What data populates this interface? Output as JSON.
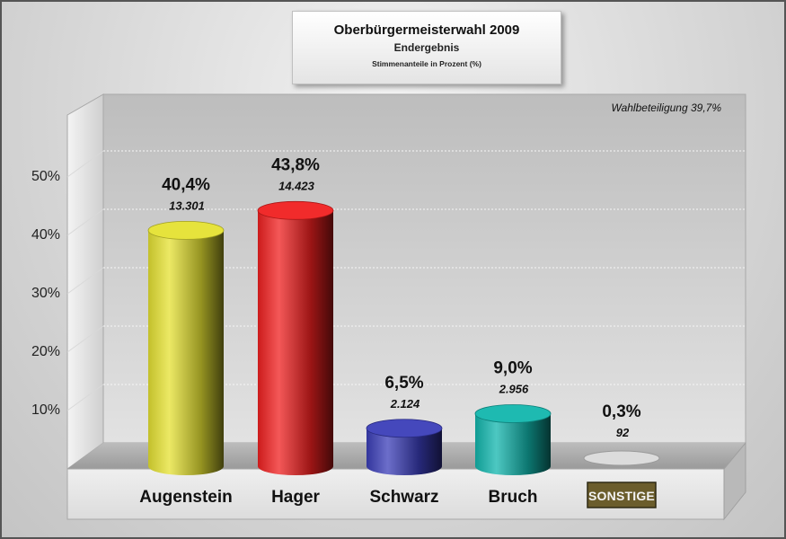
{
  "header": {
    "title": "Oberbürgermeisterwahl 2009",
    "subtitle": "Endergebnis",
    "unit_note": "Stimmenanteile in Prozent (%)"
  },
  "chart_data": {
    "type": "bar",
    "title": "Oberbürgermeisterwahl 2009",
    "subtitle": "Endergebnis",
    "ylabel": "Stimmenanteile in Prozent (%)",
    "ylim": [
      0,
      60
    ],
    "yticks": [
      "10%",
      "20%",
      "30%",
      "40%",
      "50%"
    ],
    "grid": true,
    "annotation": "Wahlbeteiligung 39,7%",
    "categories": [
      "Augenstein",
      "Hager",
      "Schwarz",
      "Bruch",
      "SONSTIGE"
    ],
    "values": [
      40.4,
      43.8,
      6.5,
      9.0,
      0.3
    ],
    "value_labels": [
      "40,4%",
      "43,8%",
      "6,5%",
      "9,0%",
      "0,3%"
    ],
    "votes": [
      "13.301",
      "14.423",
      "2.124",
      "2.956",
      "92"
    ],
    "colors": [
      "#e5e232",
      "#f02020",
      "#3b3eb8",
      "#12b6ad",
      "#d2d2d2"
    ],
    "badge_color": "#6b5d2c"
  }
}
